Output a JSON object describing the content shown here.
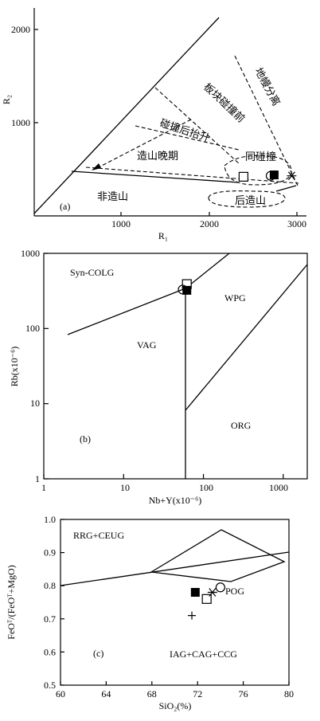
{
  "chart_data": [
    {
      "type": "scatter",
      "panel": "(a)",
      "xlabel": "R₁",
      "ylabel": "R₂",
      "xlim": [
        0,
        3100
      ],
      "ylim": [
        0,
        2300
      ],
      "xticks": [
        "1000",
        "2000",
        "3000"
      ],
      "yticks": [
        "1000",
        "2000"
      ],
      "field_labels": [
        "非造山",
        "造山晚期",
        "碰撞后抬升",
        "板块碰撞前",
        "地幔分离",
        "同碰撞",
        "后造山"
      ],
      "points": [
        {
          "marker": "open-square",
          "x": 2390,
          "y": 420
        },
        {
          "marker": "filled-square",
          "x": 2740,
          "y": 440
        },
        {
          "marker": "open-circle",
          "x": 2700,
          "y": 430
        },
        {
          "marker": "star",
          "x": 2940,
          "y": 430
        }
      ]
    },
    {
      "type": "scatter",
      "panel": "(b)",
      "xlabel": "Nb+Y(x10⁻⁶)",
      "ylabel": "Rb(x10⁻⁶)",
      "xscale": "log",
      "yscale": "log",
      "xlim": [
        1,
        2000
      ],
      "ylim": [
        1,
        1000
      ],
      "xticks": [
        "1",
        "10",
        "100",
        "1000"
      ],
      "yticks": [
        "1",
        "10",
        "100",
        "1000"
      ],
      "field_labels": [
        "Syn-COLG",
        "WPG",
        "VAG",
        "ORG"
      ],
      "points": [
        {
          "marker": "open-square",
          "x": 62,
          "y": 390
        },
        {
          "marker": "filled-square",
          "x": 62,
          "y": 322
        },
        {
          "marker": "open-circle",
          "x": 55,
          "y": 330
        }
      ]
    },
    {
      "type": "scatter",
      "panel": "(c)",
      "xlabel": "SiO₂(%)",
      "ylabel": "FeOᵀ/(FeOᵀ+MgO)",
      "xlim": [
        60,
        80
      ],
      "ylim": [
        0.5,
        1.0
      ],
      "xticks": [
        "60",
        "64",
        "68",
        "72",
        "76",
        "80"
      ],
      "yticks": [
        "0.5",
        "0.6",
        "0.7",
        "0.8",
        "0.9",
        "1.0"
      ],
      "field_labels": [
        "RRG+CEUG",
        "POG",
        "IAG+CAG+CCG"
      ],
      "points": [
        {
          "marker": "filled-square",
          "x": 71.8,
          "y": 0.78
        },
        {
          "marker": "open-square",
          "x": 72.8,
          "y": 0.76
        },
        {
          "marker": "open-circle",
          "x": 74,
          "y": 0.795
        },
        {
          "marker": "star",
          "x": 73.3,
          "y": 0.78
        },
        {
          "marker": "plus",
          "x": 71.5,
          "y": 0.71
        }
      ]
    }
  ]
}
